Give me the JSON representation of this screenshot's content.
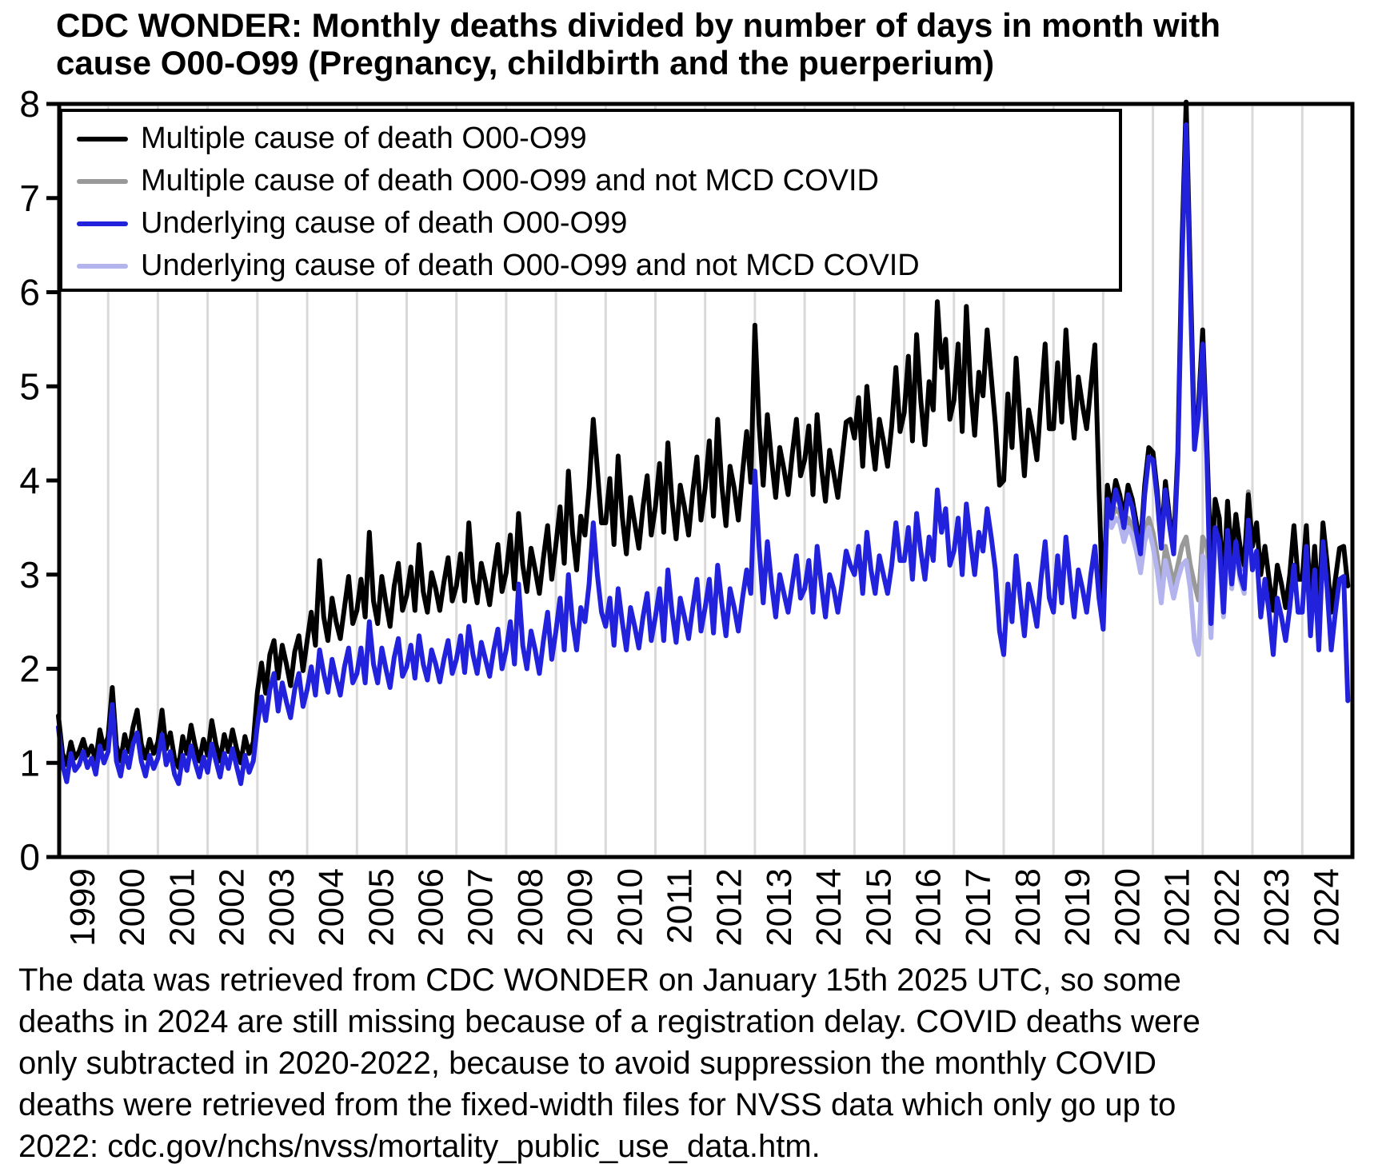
{
  "title": {
    "line1": "CDC WONDER: Monthly deaths divided by number of days in month with",
    "line2": "cause O00-O99 (Pregnancy, childbirth and the puerperium)"
  },
  "legend": {
    "items": [
      {
        "label": "Multiple cause of death O00-O99",
        "color": "#000000"
      },
      {
        "label": "Multiple cause of death O00-O99 and not MCD COVID",
        "color": "#999999"
      },
      {
        "label": "Underlying cause of death O00-O99",
        "color": "#2222dd"
      },
      {
        "label": "Underlying cause of death O00-O99 and not MCD COVID",
        "color": "#b3b3ee"
      }
    ]
  },
  "footnote": {
    "lines": [
      "The data was retrieved from CDC WONDER on January 15th 2025 UTC, so some",
      "deaths in 2024 are still missing because of a registration delay. COVID deaths were",
      "only subtracted in 2020-2022, because to avoid suppression the monthly COVID",
      "deaths were retrieved from the fixed-width files for NVSS data which only go up to",
      "2022: cdc.gov/nchs/nvss/mortality_public_use_data.htm."
    ]
  },
  "chart_data": {
    "type": "line",
    "title": "CDC WONDER: Monthly deaths divided by number of days in month with cause O00-O99 (Pregnancy, childbirth and the puerperium)",
    "xlabel": "",
    "ylabel": "",
    "x_unit": "month",
    "x_start": "1999-01",
    "x_end": "2024-12",
    "x_tick_labels": [
      "1999",
      "2000",
      "2001",
      "2002",
      "2003",
      "2004",
      "2005",
      "2006",
      "2007",
      "2008",
      "2009",
      "2010",
      "2011",
      "2012",
      "2013",
      "2014",
      "2015",
      "2016",
      "2017",
      "2018",
      "2019",
      "2020",
      "2021",
      "2022",
      "2023",
      "2024"
    ],
    "ylim": [
      0,
      8
    ],
    "y_ticks": [
      0,
      1,
      2,
      3,
      4,
      5,
      6,
      7,
      8
    ],
    "grid": "vertical-only",
    "gridline_color": "#d9d9d9",
    "legend_position": "top-left",
    "series": [
      {
        "name": "Multiple cause of death O00-O99",
        "color": "#000000",
        "width": 6,
        "start_month_index": 0,
        "values": [
          1.5,
          1.1,
          0.98,
          1.22,
          1.05,
          1.12,
          1.25,
          1.08,
          1.18,
          1.02,
          1.35,
          1.15,
          1.28,
          1.8,
          1.18,
          1.02,
          1.3,
          1.12,
          1.38,
          1.56,
          1.2,
          1.05,
          1.25,
          1.1,
          1.22,
          1.56,
          1.15,
          1.32,
          1.05,
          0.95,
          1.28,
          1.1,
          1.4,
          1.18,
          1.02,
          1.25,
          1.08,
          1.45,
          1.2,
          1.02,
          1.3,
          1.12,
          1.35,
          1.15,
          1.0,
          1.28,
          1.1,
          1.22,
          1.75,
          2.06,
          1.74,
          2.15,
          2.3,
          1.9,
          2.25,
          2.05,
          1.82,
          2.18,
          2.35,
          1.98,
          2.3,
          2.6,
          2.25,
          3.15,
          2.55,
          2.3,
          2.75,
          2.5,
          2.32,
          2.65,
          2.98,
          2.48,
          2.62,
          2.95,
          2.55,
          3.45,
          2.72,
          2.48,
          2.98,
          2.7,
          2.45,
          2.88,
          3.12,
          2.62,
          2.78,
          3.08,
          2.62,
          3.32,
          2.82,
          2.6,
          3.02,
          2.85,
          2.62,
          2.92,
          3.18,
          2.72,
          2.88,
          3.22,
          2.72,
          3.55,
          2.95,
          2.7,
          3.12,
          2.92,
          2.68,
          3.02,
          3.32,
          2.82,
          3.02,
          3.42,
          2.85,
          3.65,
          3.1,
          2.82,
          3.28,
          3.05,
          2.8,
          3.18,
          3.52,
          2.95,
          3.32,
          3.72,
          3.12,
          4.1,
          3.45,
          3.05,
          3.62,
          3.42,
          3.92,
          4.65,
          4.12,
          3.55,
          3.55,
          4.02,
          3.32,
          4.26,
          3.62,
          3.22,
          3.82,
          3.55,
          3.28,
          3.72,
          4.05,
          3.42,
          3.72,
          4.18,
          3.45,
          4.4,
          3.78,
          3.38,
          3.95,
          3.72,
          3.42,
          3.88,
          4.25,
          3.58,
          3.92,
          4.42,
          3.62,
          4.65,
          3.95,
          3.52,
          4.15,
          3.92,
          3.58,
          4.08,
          4.52,
          3.98,
          5.65,
          4.6,
          3.95,
          4.7,
          4.22,
          3.82,
          4.35,
          4.12,
          3.85,
          4.28,
          4.65,
          4.05,
          4.22,
          4.58,
          3.85,
          4.7,
          4.15,
          3.78,
          4.32,
          4.08,
          3.82,
          4.22,
          4.62,
          4.65,
          4.45,
          4.88,
          4.15,
          5.0,
          4.48,
          4.12,
          4.65,
          4.42,
          4.15,
          4.58,
          5.2,
          4.52,
          4.72,
          5.32,
          4.42,
          5.55,
          4.85,
          4.38,
          5.05,
          4.75,
          5.9,
          5.2,
          5.5,
          4.65,
          4.85,
          5.45,
          4.52,
          5.85,
          5.0,
          4.48,
          5.15,
          4.9,
          5.6,
          5.1,
          4.6,
          3.95,
          4.0,
          4.92,
          4.35,
          5.3,
          4.62,
          4.05,
          4.75,
          4.52,
          4.22,
          4.85,
          5.45,
          4.55,
          4.55,
          5.25,
          4.62,
          5.6,
          4.9,
          4.45,
          5.1,
          4.8,
          4.55,
          5.0,
          5.44,
          3.9,
          2.52,
          3.95,
          3.7,
          4.0,
          3.85,
          3.6,
          3.95,
          3.8,
          3.55,
          3.3,
          3.95,
          4.35,
          4.3,
          3.9,
          3.35,
          3.99,
          3.6,
          3.31,
          4.3,
          6.5,
          8.02,
          6.2,
          4.43,
          4.8,
          5.6,
          4.4,
          3.05,
          3.8,
          3.6,
          2.85,
          3.78,
          3.16,
          3.64,
          3.3,
          3.1,
          3.85,
          3.3,
          3.55,
          3.0,
          3.3,
          2.95,
          2.62,
          3.1,
          2.9,
          2.65,
          3.0,
          3.52,
          2.95,
          2.95,
          3.52,
          2.7,
          3.3,
          2.62,
          3.55,
          3.12,
          2.6,
          2.95,
          3.28,
          3.3,
          2.88
        ]
      },
      {
        "name": "Multiple cause of death O00-O99 and not MCD COVID",
        "color": "#999999",
        "width": 6,
        "start_month_index": 252,
        "months_range": "2020-01..2022-12",
        "values": [
          2.52,
          3.93,
          3.6,
          3.7,
          3.65,
          3.45,
          3.6,
          3.5,
          3.35,
          3.1,
          3.45,
          3.6,
          3.45,
          3.2,
          2.85,
          3.3,
          3.1,
          2.9,
          3.1,
          3.3,
          3.4,
          3.1,
          2.9,
          2.73,
          3.4,
          3.3,
          2.95,
          3.7,
          3.5,
          2.8,
          3.75,
          3.1,
          3.6,
          3.25,
          3.05,
          3.88
        ]
      },
      {
        "name": "Underlying cause of death O00-O99",
        "color": "#2222dd",
        "width": 6,
        "start_month_index": 0,
        "values": [
          1.38,
          0.98,
          0.8,
          1.1,
          0.92,
          0.98,
          1.12,
          0.95,
          1.05,
          0.88,
          1.18,
          1.0,
          1.12,
          1.62,
          1.02,
          0.86,
          1.12,
          0.95,
          1.2,
          1.32,
          1.02,
          0.86,
          1.08,
          0.94,
          1.05,
          1.3,
          0.98,
          1.12,
          0.88,
          0.78,
          1.08,
          0.92,
          1.18,
          1.0,
          0.85,
          1.06,
          0.9,
          1.2,
          1.02,
          0.85,
          1.1,
          0.94,
          1.15,
          0.96,
          0.78,
          1.08,
          0.9,
          1.02,
          1.4,
          1.7,
          1.45,
          1.78,
          1.95,
          1.55,
          1.85,
          1.65,
          1.48,
          1.78,
          1.95,
          1.6,
          1.78,
          2.02,
          1.72,
          2.2,
          1.95,
          1.75,
          2.1,
          1.9,
          1.72,
          2.02,
          2.22,
          1.85,
          1.95,
          2.22,
          1.85,
          2.5,
          2.05,
          1.85,
          2.22,
          2.0,
          1.8,
          2.12,
          2.32,
          1.92,
          2.02,
          2.25,
          1.9,
          2.35,
          2.05,
          1.88,
          2.2,
          2.05,
          1.86,
          2.1,
          2.3,
          1.95,
          2.1,
          2.35,
          1.96,
          2.45,
          2.15,
          1.95,
          2.28,
          2.1,
          1.92,
          2.2,
          2.42,
          2.0,
          2.2,
          2.5,
          2.05,
          2.9,
          2.25,
          2.0,
          2.4,
          2.2,
          1.95,
          2.3,
          2.6,
          2.1,
          2.4,
          2.75,
          2.2,
          3.0,
          2.5,
          2.2,
          2.65,
          2.5,
          2.9,
          3.55,
          3.0,
          2.6,
          2.45,
          2.75,
          2.25,
          2.85,
          2.5,
          2.2,
          2.65,
          2.45,
          2.22,
          2.55,
          2.8,
          2.3,
          2.55,
          2.85,
          2.3,
          3.05,
          2.6,
          2.28,
          2.75,
          2.55,
          2.32,
          2.65,
          2.95,
          2.4,
          2.65,
          2.95,
          2.38,
          3.1,
          2.7,
          2.35,
          2.85,
          2.65,
          2.4,
          2.75,
          3.05,
          2.8,
          4.1,
          3.3,
          2.7,
          3.35,
          2.9,
          2.55,
          3.0,
          2.8,
          2.6,
          2.9,
          3.2,
          2.75,
          2.85,
          3.15,
          2.6,
          3.3,
          2.9,
          2.55,
          3.0,
          2.85,
          2.6,
          2.9,
          3.25,
          3.1,
          3.0,
          3.3,
          2.8,
          3.45,
          3.05,
          2.8,
          3.2,
          3.0,
          2.8,
          3.1,
          3.55,
          3.15,
          3.15,
          3.5,
          2.95,
          3.65,
          3.25,
          2.95,
          3.4,
          3.15,
          3.9,
          3.45,
          3.7,
          3.1,
          3.25,
          3.6,
          3.0,
          3.75,
          3.35,
          3.0,
          3.45,
          3.25,
          3.7,
          3.4,
          3.05,
          2.4,
          2.15,
          2.9,
          2.5,
          3.2,
          2.75,
          2.35,
          2.9,
          2.7,
          2.45,
          2.95,
          3.35,
          2.75,
          2.6,
          3.2,
          2.7,
          3.4,
          2.95,
          2.55,
          3.05,
          2.85,
          2.6,
          3.0,
          3.3,
          2.75,
          2.42,
          3.8,
          3.6,
          3.9,
          3.75,
          3.5,
          3.85,
          3.72,
          3.45,
          3.22,
          3.85,
          4.25,
          4.22,
          3.82,
          3.28,
          3.9,
          3.52,
          3.22,
          4.2,
          6.3,
          7.78,
          6.0,
          4.33,
          4.7,
          5.45,
          4.25,
          2.48,
          3.5,
          3.35,
          2.6,
          3.47,
          2.9,
          3.35,
          3.0,
          2.85,
          3.58,
          3.05,
          3.25,
          2.55,
          2.95,
          2.6,
          2.15,
          2.75,
          2.55,
          2.3,
          2.65,
          3.1,
          2.6,
          2.6,
          3.3,
          2.35,
          3.05,
          2.2,
          3.35,
          2.85,
          2.2,
          2.6,
          2.95,
          2.98,
          1.66
        ]
      },
      {
        "name": "Underlying cause of death O00-O99 and not MCD COVID",
        "color": "#b3b3ee",
        "width": 6,
        "start_month_index": 252,
        "months_range": "2020-01..2022-12",
        "values": [
          2.42,
          3.78,
          3.5,
          3.6,
          3.55,
          3.35,
          3.5,
          3.42,
          3.25,
          3.02,
          3.35,
          3.5,
          3.3,
          3.05,
          2.7,
          3.15,
          2.95,
          2.75,
          2.95,
          3.1,
          3.15,
          2.85,
          2.3,
          2.15,
          3.2,
          3.1,
          2.33,
          3.4,
          3.25,
          2.55,
          3.4,
          2.85,
          3.3,
          2.95,
          2.8,
          3.63
        ]
      }
    ]
  }
}
